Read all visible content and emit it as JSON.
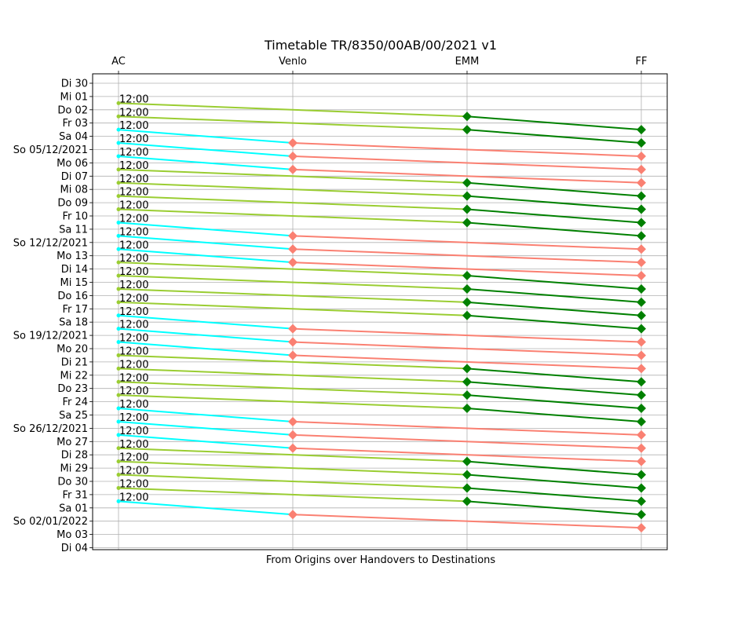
{
  "chart_data": {
    "type": "line",
    "title": "Timetable TR/8350/00AB/00/2021 v1",
    "xlabel": "From Origins over Handovers to Destinations",
    "ylabel": "",
    "stations": [
      "AC",
      "Venlo",
      "EMM",
      "FF"
    ],
    "y_tick_labels": [
      "Di 30",
      "Mi 01",
      "Do 02",
      "Fr 03",
      "Sa 04",
      "So 05/12/2021",
      "Mo 06",
      "Di 07",
      "Mi 08",
      "Do 09",
      "Fr 10",
      "Sa 11",
      "So 12/12/2021",
      "Mo 13",
      "Di 14",
      "Mi 15",
      "Do 16",
      "Fr 17",
      "Sa 18",
      "So 19/12/2021",
      "Mo 20",
      "Di 21",
      "Mi 22",
      "Do 23",
      "Fr 24",
      "Sa 25",
      "So 26/12/2021",
      "Mo 27",
      "Di 28",
      "Mi 29",
      "Do 30",
      "Fr 31",
      "Sa 01",
      "So 02/01/2022",
      "Mo 03",
      "Di 04"
    ],
    "grid": true,
    "colors": {
      "route_emm_first": "#9acd32",
      "route_emm_second": "#008000",
      "route_venlo_first": "#00ffff",
      "route_venlo_second": "#fa8072"
    },
    "trips": [
      {
        "route": "EMM",
        "departure_label": "12:00",
        "stops": [
          {
            "station": "AC",
            "day": 1.5
          },
          {
            "station": "EMM",
            "day": 2.5
          },
          {
            "station": "FF",
            "day": 3.5
          }
        ]
      },
      {
        "route": "EMM",
        "departure_label": "12:00",
        "stops": [
          {
            "station": "AC",
            "day": 2.5
          },
          {
            "station": "EMM",
            "day": 3.5
          },
          {
            "station": "FF",
            "day": 4.5
          }
        ]
      },
      {
        "route": "Venlo",
        "departure_label": "12:00",
        "stops": [
          {
            "station": "AC",
            "day": 3.5
          },
          {
            "station": "Venlo",
            "day": 4.5
          },
          {
            "station": "FF",
            "day": 5.5
          }
        ]
      },
      {
        "route": "Venlo",
        "departure_label": "12:00",
        "stops": [
          {
            "station": "AC",
            "day": 4.5
          },
          {
            "station": "Venlo",
            "day": 5.5
          },
          {
            "station": "FF",
            "day": 6.5
          }
        ]
      },
      {
        "route": "Venlo",
        "departure_label": "12:00",
        "stops": [
          {
            "station": "AC",
            "day": 5.5
          },
          {
            "station": "Venlo",
            "day": 6.5
          },
          {
            "station": "FF",
            "day": 7.5
          }
        ]
      },
      {
        "route": "EMM",
        "departure_label": "12:00",
        "stops": [
          {
            "station": "AC",
            "day": 6.5
          },
          {
            "station": "EMM",
            "day": 7.5
          },
          {
            "station": "FF",
            "day": 8.5
          }
        ]
      },
      {
        "route": "EMM",
        "departure_label": "12:00",
        "stops": [
          {
            "station": "AC",
            "day": 7.5
          },
          {
            "station": "EMM",
            "day": 8.5
          },
          {
            "station": "FF",
            "day": 9.5
          }
        ]
      },
      {
        "route": "EMM",
        "departure_label": "12:00",
        "stops": [
          {
            "station": "AC",
            "day": 8.5
          },
          {
            "station": "EMM",
            "day": 9.5
          },
          {
            "station": "FF",
            "day": 10.5
          }
        ]
      },
      {
        "route": "EMM",
        "departure_label": "12:00",
        "stops": [
          {
            "station": "AC",
            "day": 9.5
          },
          {
            "station": "EMM",
            "day": 10.5
          },
          {
            "station": "FF",
            "day": 11.5
          }
        ]
      },
      {
        "route": "Venlo",
        "departure_label": "12:00",
        "stops": [
          {
            "station": "AC",
            "day": 10.5
          },
          {
            "station": "Venlo",
            "day": 11.5
          },
          {
            "station": "FF",
            "day": 12.5
          }
        ]
      },
      {
        "route": "Venlo",
        "departure_label": "12:00",
        "stops": [
          {
            "station": "AC",
            "day": 11.5
          },
          {
            "station": "Venlo",
            "day": 12.5
          },
          {
            "station": "FF",
            "day": 13.5
          }
        ]
      },
      {
        "route": "Venlo",
        "departure_label": "12:00",
        "stops": [
          {
            "station": "AC",
            "day": 12.5
          },
          {
            "station": "Venlo",
            "day": 13.5
          },
          {
            "station": "FF",
            "day": 14.5
          }
        ]
      },
      {
        "route": "EMM",
        "departure_label": "12:00",
        "stops": [
          {
            "station": "AC",
            "day": 13.5
          },
          {
            "station": "EMM",
            "day": 14.5
          },
          {
            "station": "FF",
            "day": 15.5
          }
        ]
      },
      {
        "route": "EMM",
        "departure_label": "12:00",
        "stops": [
          {
            "station": "AC",
            "day": 14.5
          },
          {
            "station": "EMM",
            "day": 15.5
          },
          {
            "station": "FF",
            "day": 16.5
          }
        ]
      },
      {
        "route": "EMM",
        "departure_label": "12:00",
        "stops": [
          {
            "station": "AC",
            "day": 15.5
          },
          {
            "station": "EMM",
            "day": 16.5
          },
          {
            "station": "FF",
            "day": 17.5
          }
        ]
      },
      {
        "route": "EMM",
        "departure_label": "12:00",
        "stops": [
          {
            "station": "AC",
            "day": 16.5
          },
          {
            "station": "EMM",
            "day": 17.5
          },
          {
            "station": "FF",
            "day": 18.5
          }
        ]
      },
      {
        "route": "Venlo",
        "departure_label": "12:00",
        "stops": [
          {
            "station": "AC",
            "day": 17.5
          },
          {
            "station": "Venlo",
            "day": 18.5
          },
          {
            "station": "FF",
            "day": 19.5
          }
        ]
      },
      {
        "route": "Venlo",
        "departure_label": "12:00",
        "stops": [
          {
            "station": "AC",
            "day": 18.5
          },
          {
            "station": "Venlo",
            "day": 19.5
          },
          {
            "station": "FF",
            "day": 20.5
          }
        ]
      },
      {
        "route": "Venlo",
        "departure_label": "12:00",
        "stops": [
          {
            "station": "AC",
            "day": 19.5
          },
          {
            "station": "Venlo",
            "day": 20.5
          },
          {
            "station": "FF",
            "day": 21.5
          }
        ]
      },
      {
        "route": "EMM",
        "departure_label": "12:00",
        "stops": [
          {
            "station": "AC",
            "day": 20.5
          },
          {
            "station": "EMM",
            "day": 21.5
          },
          {
            "station": "FF",
            "day": 22.5
          }
        ]
      },
      {
        "route": "EMM",
        "departure_label": "12:00",
        "stops": [
          {
            "station": "AC",
            "day": 21.5
          },
          {
            "station": "EMM",
            "day": 22.5
          },
          {
            "station": "FF",
            "day": 23.5
          }
        ]
      },
      {
        "route": "EMM",
        "departure_label": "12:00",
        "stops": [
          {
            "station": "AC",
            "day": 22.5
          },
          {
            "station": "EMM",
            "day": 23.5
          },
          {
            "station": "FF",
            "day": 24.5
          }
        ]
      },
      {
        "route": "EMM",
        "departure_label": "12:00",
        "stops": [
          {
            "station": "AC",
            "day": 23.5
          },
          {
            "station": "EMM",
            "day": 24.5
          },
          {
            "station": "FF",
            "day": 25.5
          }
        ]
      },
      {
        "route": "Venlo",
        "departure_label": "12:00",
        "stops": [
          {
            "station": "AC",
            "day": 24.5
          },
          {
            "station": "Venlo",
            "day": 25.5
          },
          {
            "station": "FF",
            "day": 26.5
          }
        ]
      },
      {
        "route": "Venlo",
        "departure_label": "12:00",
        "stops": [
          {
            "station": "AC",
            "day": 25.5
          },
          {
            "station": "Venlo",
            "day": 26.5
          },
          {
            "station": "FF",
            "day": 27.5
          }
        ]
      },
      {
        "route": "Venlo",
        "departure_label": "12:00",
        "stops": [
          {
            "station": "AC",
            "day": 26.5
          },
          {
            "station": "Venlo",
            "day": 27.5
          },
          {
            "station": "FF",
            "day": 28.5
          }
        ]
      },
      {
        "route": "EMM",
        "departure_label": "12:00",
        "stops": [
          {
            "station": "AC",
            "day": 27.5
          },
          {
            "station": "EMM",
            "day": 28.5
          },
          {
            "station": "FF",
            "day": 29.5
          }
        ]
      },
      {
        "route": "EMM",
        "departure_label": "12:00",
        "stops": [
          {
            "station": "AC",
            "day": 28.5
          },
          {
            "station": "EMM",
            "day": 29.5
          },
          {
            "station": "FF",
            "day": 30.5
          }
        ]
      },
      {
        "route": "EMM",
        "departure_label": "12:00",
        "stops": [
          {
            "station": "AC",
            "day": 29.5
          },
          {
            "station": "EMM",
            "day": 30.5
          },
          {
            "station": "FF",
            "day": 31.5
          }
        ]
      },
      {
        "route": "EMM",
        "departure_label": "12:00",
        "stops": [
          {
            "station": "AC",
            "day": 30.5
          },
          {
            "station": "EMM",
            "day": 31.5
          },
          {
            "station": "FF",
            "day": 32.5
          }
        ]
      },
      {
        "route": "Venlo",
        "departure_label": "12:00",
        "stops": [
          {
            "station": "AC",
            "day": 31.5
          },
          {
            "station": "Venlo",
            "day": 32.5
          },
          {
            "station": "FF",
            "day": 33.5
          }
        ]
      }
    ]
  }
}
